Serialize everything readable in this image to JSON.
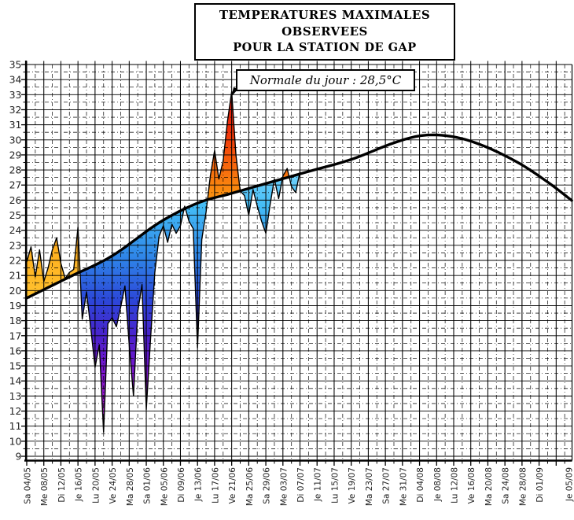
{
  "title": {
    "line1": "TEMPERATURES MAXIMALES OBSERVEES",
    "line2": "POUR LA STATION DE GAP"
  },
  "annotation": {
    "text": "Normale du jour : 28,5°C"
  },
  "chart_data": {
    "type": "area",
    "title": "TEMPERATURES MAXIMALES OBSERVEES POUR LA STATION DE GAP",
    "xlabel": "",
    "ylabel": "",
    "ylim": [
      9,
      35
    ],
    "grid": true,
    "y_axis": {
      "min": 9,
      "max": 35,
      "major_step": 1,
      "minor_step": 0.5,
      "tick_labels": [
        "9",
        "10",
        "11",
        "12",
        "13",
        "14",
        "15",
        "16",
        "17",
        "18",
        "19",
        "20",
        "21",
        "22",
        "23",
        "24",
        "25",
        "26",
        "27",
        "28",
        "29",
        "30",
        "31",
        "32",
        "33",
        "34",
        "35"
      ]
    },
    "x_axis": {
      "tick_step_days": 4,
      "minor_step_days": 2,
      "tick_labels": [
        "Sa 04/05",
        "Me 08/05",
        "Di 12/05",
        "Je 16/05",
        "Lu 20/05",
        "Ve 24/05",
        "Ma 28/05",
        "Sa 01/06",
        "Me 05/06",
        "Di 09/06",
        "Je 13/06",
        "Lu 17/06",
        "Ve 21/06",
        "Ma 25/06",
        "Sa 29/06",
        "Me 03/07",
        "Di 07/07",
        "Je 11/07",
        "Lu 15/07",
        "Ve 19/07",
        "Ma 23/07",
        "Sa 27/07",
        "Me 31/07",
        "Di 04/08",
        "Je 08/08",
        "Lu 12/08",
        "Ve 16/08",
        "Ma 20/08",
        "Sa 24/08",
        "Me 28/08",
        "Di 01/09"
      ],
      "partial_last_label": "Je 05/09"
    },
    "normal_annotation": "Normale du jour : 28,5°C",
    "series": [
      {
        "name": "temperature_maximale_observee",
        "dates": [
          "04/05",
          "05/05",
          "06/05",
          "07/05",
          "08/05",
          "09/05",
          "10/05",
          "11/05",
          "12/05",
          "13/05",
          "14/05",
          "15/05",
          "16/05",
          "17/05",
          "18/05",
          "19/05",
          "20/05",
          "21/05",
          "22/05",
          "23/05",
          "24/05",
          "25/05",
          "26/05",
          "27/05",
          "28/05",
          "29/05",
          "30/05",
          "31/05",
          "01/06",
          "02/06",
          "03/06",
          "04/06",
          "05/06",
          "06/06",
          "07/06",
          "08/06",
          "09/06",
          "10/06",
          "11/06",
          "12/06",
          "13/06",
          "14/06",
          "15/06",
          "16/06",
          "17/06",
          "18/06",
          "19/06",
          "20/06",
          "21/06",
          "22/06",
          "23/06",
          "24/06",
          "25/06",
          "26/06",
          "27/06",
          "28/06",
          "29/06",
          "30/06",
          "01/07",
          "02/07",
          "03/07",
          "04/07",
          "05/07",
          "06/07",
          "07/07"
        ],
        "values": [
          21.9,
          22.9,
          20.9,
          22.7,
          20.6,
          21.5,
          22.7,
          23.5,
          21.8,
          20.8,
          21.2,
          21.4,
          24.2,
          18.1,
          19.9,
          17.5,
          14.9,
          16.4,
          10.6,
          17.8,
          18.2,
          17.6,
          18.9,
          20.3,
          16.4,
          13.0,
          18.6,
          20.4,
          12.1,
          16.8,
          21.2,
          23.6,
          24.3,
          23.2,
          24.4,
          23.8,
          24.3,
          25.6,
          24.6,
          24.1,
          16.2,
          23.4,
          25.2,
          27.6,
          29.3,
          27.4,
          28.6,
          31.2,
          33.2,
          29.0,
          26.6,
          26.3,
          25.0,
          26.7,
          25.6,
          24.6,
          23.8,
          25.7,
          27.4,
          26.1,
          27.6,
          28.1,
          26.9,
          26.5,
          27.9
        ]
      },
      {
        "name": "normale_du_jour",
        "control_points": [
          [
            0,
            19.5
          ],
          [
            10,
            20.9
          ],
          [
            20,
            22.3
          ],
          [
            31,
            24.5
          ],
          [
            40,
            25.8
          ],
          [
            48,
            26.45
          ],
          [
            56,
            27.1
          ],
          [
            66,
            27.9
          ],
          [
            76,
            28.7
          ],
          [
            86,
            29.8
          ],
          [
            93,
            30.3
          ],
          [
            100,
            30.2
          ],
          [
            107,
            29.6
          ],
          [
            115,
            28.5
          ],
          [
            122,
            27.2
          ],
          [
            128,
            25.9
          ]
        ]
      }
    ],
    "colors": {
      "above_normal_gradient": [
        "#D50F0F",
        "#F0320A",
        "#FA8C0F",
        "#FFB020",
        "#FFD23C"
      ],
      "below_normal_gradient": [
        "#8FE0FF",
        "#44BCF6",
        "#2F86E8",
        "#2C46D8",
        "#4A22CC",
        "#7E14CC",
        "#AA1ECE",
        "#DA3ADA"
      ],
      "normal_curve": "#000000",
      "grid": "#000000",
      "outline": "#000000",
      "background": "#ffffff"
    }
  }
}
